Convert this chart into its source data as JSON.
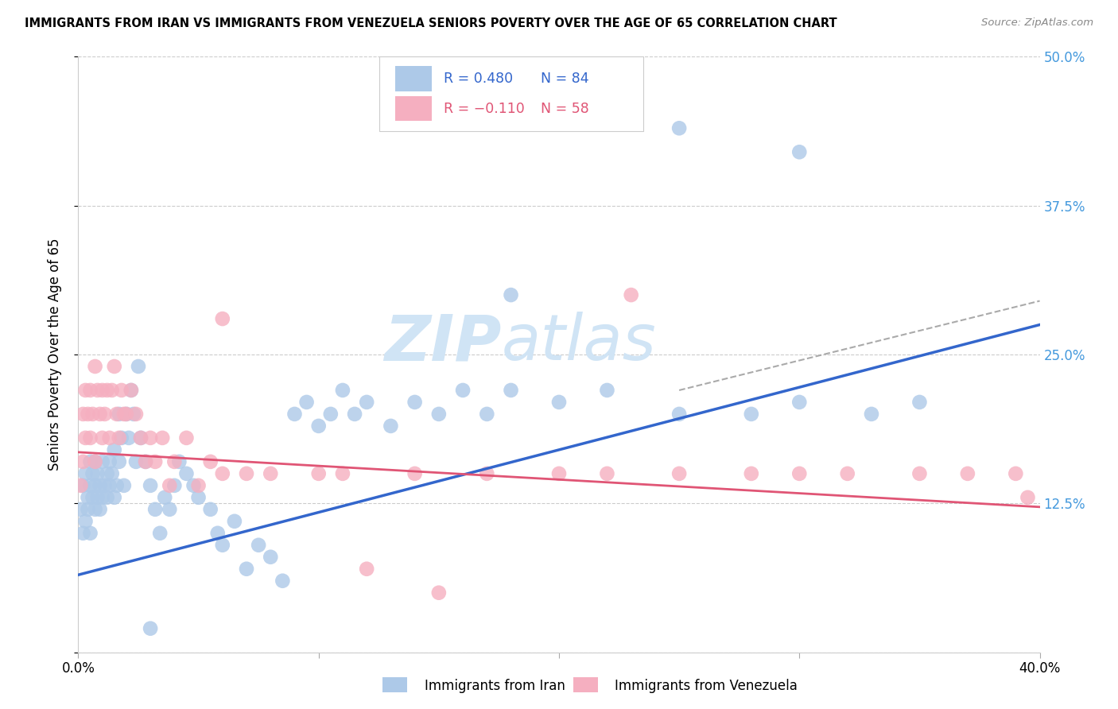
{
  "title": "IMMIGRANTS FROM IRAN VS IMMIGRANTS FROM VENEZUELA SENIORS POVERTY OVER THE AGE OF 65 CORRELATION CHART",
  "source": "Source: ZipAtlas.com",
  "ylabel": "Seniors Poverty Over the Age of 65",
  "xlabel_iran": "Immigrants from Iran",
  "xlabel_venezuela": "Immigrants from Venezuela",
  "xmin": 0.0,
  "xmax": 0.4,
  "ymin": 0.0,
  "ymax": 0.5,
  "ytick_vals": [
    0.0,
    0.125,
    0.25,
    0.375,
    0.5
  ],
  "xtick_vals": [
    0.0,
    0.1,
    0.2,
    0.3,
    0.4
  ],
  "iran_R": 0.48,
  "iran_N": 84,
  "venezuela_R": -0.11,
  "venezuela_N": 58,
  "iran_color": "#adc9e8",
  "iran_line_color": "#3366cc",
  "venezuela_color": "#f5afc0",
  "venezuela_line_color": "#e05575",
  "iran_legend_color": "#3366cc",
  "venezuela_legend_color": "#e05575",
  "N_color": "#e05000",
  "watermark_color": "#d0e4f5",
  "grid_color": "#cccccc",
  "right_axis_color": "#4499dd",
  "iran_line_start_y": 0.065,
  "iran_line_end_y": 0.275,
  "venezuela_line_start_y": 0.168,
  "venezuela_line_end_y": 0.122,
  "dashed_line_start_x": 0.25,
  "dashed_line_start_y": 0.22,
  "dashed_line_end_x": 0.4,
  "dashed_line_end_y": 0.295,
  "iran_x": [
    0.001,
    0.002,
    0.002,
    0.003,
    0.003,
    0.004,
    0.004,
    0.005,
    0.005,
    0.005,
    0.006,
    0.006,
    0.007,
    0.007,
    0.007,
    0.008,
    0.008,
    0.009,
    0.009,
    0.01,
    0.01,
    0.011,
    0.012,
    0.012,
    0.013,
    0.013,
    0.014,
    0.015,
    0.015,
    0.016,
    0.017,
    0.017,
    0.018,
    0.019,
    0.02,
    0.021,
    0.022,
    0.023,
    0.024,
    0.025,
    0.026,
    0.028,
    0.03,
    0.032,
    0.034,
    0.036,
    0.038,
    0.04,
    0.042,
    0.045,
    0.048,
    0.05,
    0.055,
    0.058,
    0.06,
    0.065,
    0.07,
    0.075,
    0.08,
    0.085,
    0.09,
    0.095,
    0.1,
    0.105,
    0.11,
    0.115,
    0.12,
    0.13,
    0.14,
    0.15,
    0.16,
    0.17,
    0.18,
    0.2,
    0.22,
    0.25,
    0.28,
    0.3,
    0.33,
    0.35,
    0.18,
    0.25,
    0.03,
    0.3
  ],
  "iran_y": [
    0.12,
    0.14,
    0.1,
    0.15,
    0.11,
    0.13,
    0.12,
    0.14,
    0.1,
    0.16,
    0.13,
    0.15,
    0.12,
    0.16,
    0.14,
    0.13,
    0.15,
    0.12,
    0.14,
    0.13,
    0.16,
    0.14,
    0.15,
    0.13,
    0.16,
    0.14,
    0.15,
    0.13,
    0.17,
    0.14,
    0.2,
    0.16,
    0.18,
    0.14,
    0.2,
    0.18,
    0.22,
    0.2,
    0.16,
    0.24,
    0.18,
    0.16,
    0.14,
    0.12,
    0.1,
    0.13,
    0.12,
    0.14,
    0.16,
    0.15,
    0.14,
    0.13,
    0.12,
    0.1,
    0.09,
    0.11,
    0.07,
    0.09,
    0.08,
    0.06,
    0.2,
    0.21,
    0.19,
    0.2,
    0.22,
    0.2,
    0.21,
    0.19,
    0.21,
    0.2,
    0.22,
    0.2,
    0.22,
    0.21,
    0.22,
    0.2,
    0.2,
    0.21,
    0.2,
    0.21,
    0.3,
    0.44,
    0.02,
    0.42
  ],
  "venezuela_x": [
    0.001,
    0.002,
    0.002,
    0.003,
    0.003,
    0.004,
    0.005,
    0.005,
    0.006,
    0.007,
    0.007,
    0.008,
    0.009,
    0.01,
    0.01,
    0.011,
    0.012,
    0.013,
    0.014,
    0.015,
    0.016,
    0.017,
    0.018,
    0.019,
    0.02,
    0.022,
    0.024,
    0.026,
    0.028,
    0.03,
    0.032,
    0.035,
    0.038,
    0.04,
    0.045,
    0.05,
    0.055,
    0.06,
    0.07,
    0.08,
    0.1,
    0.11,
    0.12,
    0.14,
    0.15,
    0.17,
    0.2,
    0.22,
    0.25,
    0.28,
    0.3,
    0.32,
    0.35,
    0.37,
    0.39,
    0.395,
    0.23,
    0.06
  ],
  "venezuela_y": [
    0.14,
    0.2,
    0.16,
    0.22,
    0.18,
    0.2,
    0.22,
    0.18,
    0.2,
    0.24,
    0.16,
    0.22,
    0.2,
    0.18,
    0.22,
    0.2,
    0.22,
    0.18,
    0.22,
    0.24,
    0.2,
    0.18,
    0.22,
    0.2,
    0.2,
    0.22,
    0.2,
    0.18,
    0.16,
    0.18,
    0.16,
    0.18,
    0.14,
    0.16,
    0.18,
    0.14,
    0.16,
    0.15,
    0.15,
    0.15,
    0.15,
    0.15,
    0.07,
    0.15,
    0.05,
    0.15,
    0.15,
    0.15,
    0.15,
    0.15,
    0.15,
    0.15,
    0.15,
    0.15,
    0.15,
    0.13,
    0.3,
    0.28
  ]
}
